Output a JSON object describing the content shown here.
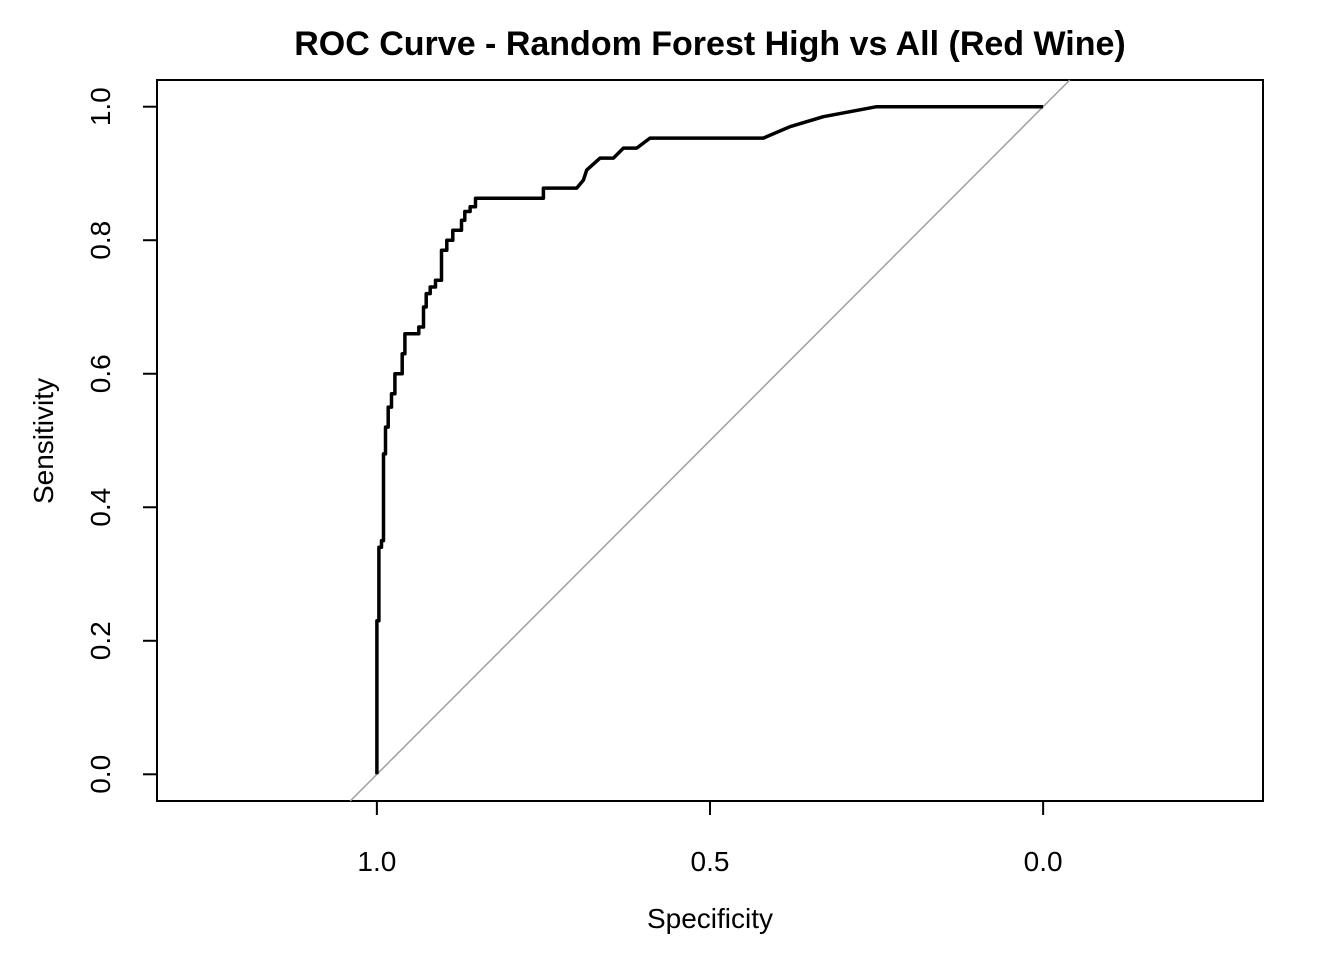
{
  "chart_data": {
    "type": "line",
    "title": "ROC Curve - Random Forest  High vs All (Red Wine)",
    "xlabel": "Specificity",
    "ylabel": "Sensitivity",
    "xlim": [
      1.33,
      -0.33
    ],
    "ylim": [
      -0.04,
      1.04
    ],
    "x_reversed": true,
    "grid": false,
    "x_ticks": [
      1.0,
      0.5,
      0.0
    ],
    "x_tick_labels": [
      "1.0",
      "0.5",
      "0.0"
    ],
    "y_ticks": [
      0.0,
      0.2,
      0.4,
      0.6,
      0.8,
      1.0
    ],
    "y_tick_labels": [
      "0.0",
      "0.2",
      "0.4",
      "0.6",
      "0.8",
      "1.0"
    ],
    "series": [
      {
        "color": "#000000",
        "points": [
          [
            1.0,
            0.0
          ],
          [
            1.0,
            0.23
          ],
          [
            0.997,
            0.23
          ],
          [
            0.997,
            0.34
          ],
          [
            0.993,
            0.34
          ],
          [
            0.993,
            0.35
          ],
          [
            0.99,
            0.35
          ],
          [
            0.99,
            0.48
          ],
          [
            0.987,
            0.48
          ],
          [
            0.987,
            0.52
          ],
          [
            0.983,
            0.52
          ],
          [
            0.983,
            0.55
          ],
          [
            0.978,
            0.55
          ],
          [
            0.978,
            0.57
          ],
          [
            0.973,
            0.57
          ],
          [
            0.973,
            0.6
          ],
          [
            0.962,
            0.6
          ],
          [
            0.962,
            0.63
          ],
          [
            0.958,
            0.63
          ],
          [
            0.958,
            0.66
          ],
          [
            0.937,
            0.66
          ],
          [
            0.937,
            0.67
          ],
          [
            0.93,
            0.67
          ],
          [
            0.93,
            0.7
          ],
          [
            0.926,
            0.7
          ],
          [
            0.926,
            0.72
          ],
          [
            0.92,
            0.72
          ],
          [
            0.92,
            0.73
          ],
          [
            0.912,
            0.73
          ],
          [
            0.912,
            0.74
          ],
          [
            0.903,
            0.74
          ],
          [
            0.903,
            0.785
          ],
          [
            0.895,
            0.785
          ],
          [
            0.895,
            0.8
          ],
          [
            0.886,
            0.8
          ],
          [
            0.886,
            0.815
          ],
          [
            0.873,
            0.815
          ],
          [
            0.873,
            0.83
          ],
          [
            0.868,
            0.83
          ],
          [
            0.868,
            0.843
          ],
          [
            0.86,
            0.843
          ],
          [
            0.86,
            0.85
          ],
          [
            0.852,
            0.85
          ],
          [
            0.852,
            0.863
          ],
          [
            0.75,
            0.863
          ],
          [
            0.75,
            0.878
          ],
          [
            0.7,
            0.878
          ],
          [
            0.69,
            0.89
          ],
          [
            0.685,
            0.905
          ],
          [
            0.665,
            0.923
          ],
          [
            0.645,
            0.923
          ],
          [
            0.63,
            0.938
          ],
          [
            0.61,
            0.938
          ],
          [
            0.59,
            0.953
          ],
          [
            0.42,
            0.953
          ],
          [
            0.38,
            0.97
          ],
          [
            0.33,
            0.985
          ],
          [
            0.25,
            1.0
          ],
          [
            0.0,
            1.0
          ]
        ]
      }
    ],
    "reference_line": {
      "color": "#a0a0a0",
      "from": [
        1.04,
        -0.04
      ],
      "to": [
        -0.04,
        1.04
      ]
    }
  }
}
